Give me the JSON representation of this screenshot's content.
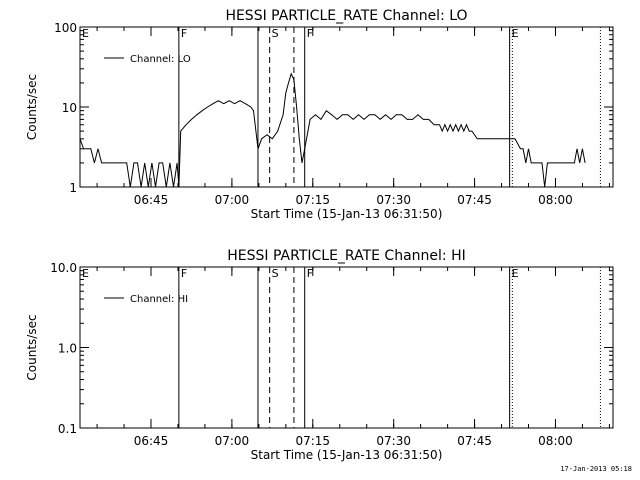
{
  "footer_timestamp": "17-Jan-2013 05:18",
  "chart_data": [
    {
      "type": "line",
      "title": "HESSI PARTICLE_RATE Channel: LO",
      "xlabel": "Start Time (15-Jan-13 06:31:50)",
      "ylabel": "Counts/sec",
      "yscale": "log",
      "ylim": [
        1,
        100
      ],
      "ytick_labels": [
        "1",
        "10",
        "100"
      ],
      "xlim": [
        "06:31:50",
        "08:10:40"
      ],
      "xtick_labels": [
        "06:45",
        "07:00",
        "07:15",
        "07:30",
        "07:45",
        "08:00"
      ],
      "legend": {
        "position": "top-left",
        "entries": [
          "Channel: LO"
        ]
      },
      "markers": [
        {
          "label": "E",
          "time": "06:31:50",
          "style": "solid"
        },
        {
          "label": "F",
          "time": "06:50:10",
          "style": "solid"
        },
        {
          "label": "",
          "time": "07:04:50",
          "style": "solid"
        },
        {
          "label": "S",
          "time": "07:07:00",
          "style": "dashed"
        },
        {
          "label": "",
          "time": "07:11:30",
          "style": "dashed"
        },
        {
          "label": "F",
          "time": "07:13:30",
          "style": "solid"
        },
        {
          "label": "E",
          "time": "07:51:30",
          "style": "solid"
        },
        {
          "label": "",
          "time": "07:52:00",
          "style": "dotted"
        },
        {
          "label": "",
          "time": "08:08:20",
          "style": "dotted"
        }
      ],
      "series": [
        {
          "name": "Channel: LO",
          "x": [
            "06:31:50",
            "06:32:30",
            "06:33:10",
            "06:33:50",
            "06:34:30",
            "06:35:10",
            "06:35:50",
            "06:36:30",
            "06:37:10",
            "06:37:50",
            "06:38:30",
            "06:39:10",
            "06:39:50",
            "06:40:30",
            "06:41:10",
            "06:41:50",
            "06:42:30",
            "06:43:10",
            "06:43:50",
            "06:44:30",
            "06:45:10",
            "06:45:50",
            "06:46:30",
            "06:47:10",
            "06:47:50",
            "06:48:30",
            "06:49:10",
            "06:49:50",
            "06:50:10",
            "06:50:30",
            "06:51:30",
            "06:52:30",
            "06:53:30",
            "06:54:30",
            "06:55:30",
            "06:56:30",
            "06:57:30",
            "06:58:30",
            "06:59:30",
            "07:00:30",
            "07:01:30",
            "07:02:30",
            "07:03:30",
            "07:04:00",
            "07:04:50",
            "07:05:30",
            "07:06:30",
            "07:07:30",
            "07:08:30",
            "07:09:30",
            "07:10:00",
            "07:10:30",
            "07:11:00",
            "07:11:30",
            "07:12:00",
            "07:12:30",
            "07:13:00",
            "07:13:30",
            "07:14:30",
            "07:15:30",
            "07:16:30",
            "07:17:30",
            "07:18:30",
            "07:19:30",
            "07:20:30",
            "07:21:30",
            "07:22:30",
            "07:23:30",
            "07:24:30",
            "07:25:30",
            "07:26:30",
            "07:27:30",
            "07:28:30",
            "07:29:30",
            "07:30:30",
            "07:31:30",
            "07:32:30",
            "07:33:30",
            "07:34:30",
            "07:35:30",
            "07:36:30",
            "07:37:30",
            "07:38:30",
            "07:39:00",
            "07:39:30",
            "07:40:00",
            "07:40:30",
            "07:41:00",
            "07:41:30",
            "07:42:00",
            "07:42:30",
            "07:43:00",
            "07:43:30",
            "07:44:00",
            "07:44:30",
            "07:45:30",
            "07:46:30",
            "07:47:30",
            "07:48:30",
            "07:49:30",
            "07:50:30",
            "07:51:30",
            "07:52:30",
            "07:53:30",
            "07:54:00",
            "07:54:30",
            "07:55:00",
            "07:55:30",
            "07:56:30",
            "07:57:30",
            "07:58:00",
            "07:58:30",
            "07:59:30",
            "08:00:30",
            "08:01:30",
            "08:02:30",
            "08:03:30",
            "08:04:00",
            "08:04:30",
            "08:05:00",
            "08:05:30"
          ],
          "y": [
            4,
            3,
            3,
            3,
            2,
            3,
            2,
            2,
            2,
            2,
            2,
            2,
            2,
            2,
            1,
            2,
            2,
            1,
            2,
            1,
            2,
            1,
            2,
            2,
            1,
            2,
            1,
            2,
            1,
            5,
            6,
            7,
            8,
            9,
            10,
            11,
            12,
            11,
            12,
            11,
            12,
            11,
            10,
            9,
            3,
            4,
            4.5,
            4,
            5,
            8,
            15,
            20,
            26,
            22,
            10,
            4,
            2,
            3,
            7,
            8,
            7,
            9,
            8,
            7,
            8,
            8,
            7,
            8,
            7,
            8,
            8,
            7,
            8,
            7,
            8,
            8,
            7,
            7,
            8,
            7,
            7,
            6,
            6,
            5,
            6,
            5,
            6,
            5,
            6,
            5,
            6,
            5,
            6,
            5,
            5,
            4,
            4,
            4,
            4,
            4,
            4,
            4,
            4,
            3,
            3,
            2,
            3,
            2,
            2,
            2,
            1,
            2,
            2,
            2,
            2,
            2,
            2,
            3,
            2,
            3,
            2
          ]
        }
      ]
    },
    {
      "type": "line",
      "title": "HESSI PARTICLE_RATE Channel: HI",
      "xlabel": "Start Time (15-Jan-13 06:31:50)",
      "ylabel": "Counts/sec",
      "yscale": "log",
      "ylim": [
        0.1,
        10
      ],
      "ytick_labels": [
        "0.1",
        "1.0",
        "10.0"
      ],
      "xlim": [
        "06:31:50",
        "08:10:40"
      ],
      "xtick_labels": [
        "06:45",
        "07:00",
        "07:15",
        "07:30",
        "07:45",
        "08:00"
      ],
      "legend": {
        "position": "top-left",
        "entries": [
          "Channel: HI"
        ]
      },
      "markers": [
        {
          "label": "E",
          "time": "06:31:50",
          "style": "solid"
        },
        {
          "label": "F",
          "time": "06:50:10",
          "style": "solid"
        },
        {
          "label": "",
          "time": "07:04:50",
          "style": "solid"
        },
        {
          "label": "S",
          "time": "07:07:00",
          "style": "dashed"
        },
        {
          "label": "",
          "time": "07:11:30",
          "style": "dashed"
        },
        {
          "label": "F",
          "time": "07:13:30",
          "style": "solid"
        },
        {
          "label": "E",
          "time": "07:51:30",
          "style": "solid"
        },
        {
          "label": "",
          "time": "07:52:00",
          "style": "dotted"
        },
        {
          "label": "",
          "time": "08:08:20",
          "style": "dotted"
        }
      ],
      "series": [
        {
          "name": "Channel: HI",
          "x": [],
          "y": []
        }
      ]
    }
  ]
}
